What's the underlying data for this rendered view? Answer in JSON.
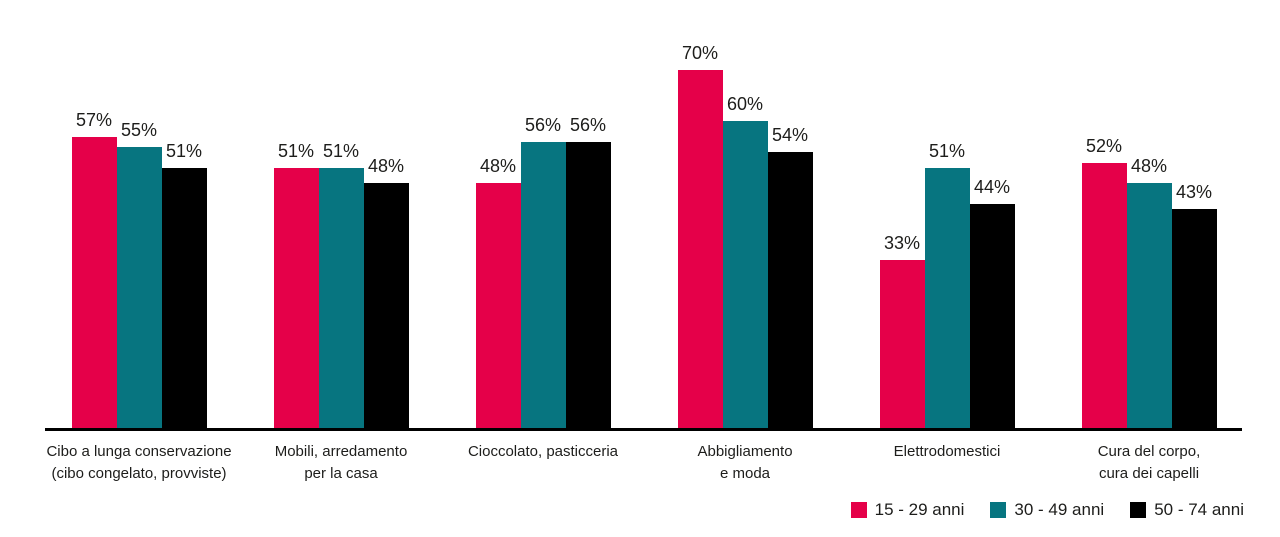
{
  "chart_data": {
    "type": "bar",
    "title": "",
    "xlabel": "",
    "ylabel": "",
    "value_suffix": "%",
    "ylim": [
      0,
      84
    ],
    "grid": false,
    "legend_position": "bottom-right",
    "background_color": "#ffffff",
    "axis_color": "#000000",
    "text_color": "#1d1d1b",
    "categories": [
      "Cibo a lunga conservazione\n(cibo congelato, provviste)",
      "Mobili, arredamento\nper la casa",
      "Cioccolato, pasticceria",
      "Abbigliamento\ne moda",
      "Elettrodomestici",
      "Cura del corpo,\ncura dei capelli"
    ],
    "series": [
      {
        "name": "15 - 29 anni",
        "color": "#e50049",
        "values": [
          57,
          51,
          48,
          70,
          33,
          52
        ]
      },
      {
        "name": "30 - 49 anni",
        "color": "#077580",
        "values": [
          55,
          51,
          56,
          60,
          51,
          48
        ]
      },
      {
        "name": "50 - 74 anni",
        "color": "#000000",
        "values": [
          51,
          48,
          56,
          54,
          44,
          43
        ]
      }
    ]
  }
}
